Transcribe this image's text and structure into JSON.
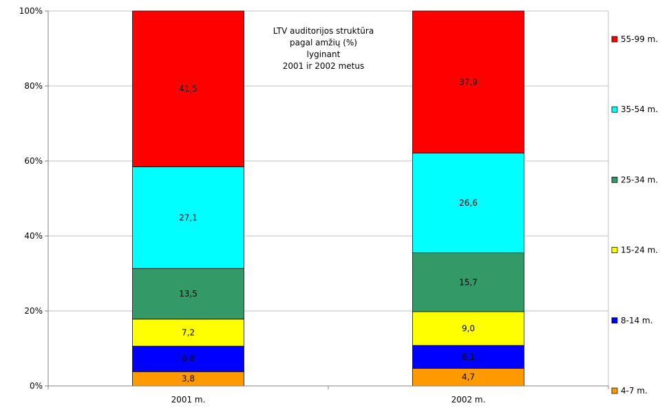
{
  "chart_data": {
    "type": "bar",
    "stacked": true,
    "title_lines": [
      "LTV auditorijos struktūra",
      "pagal amžių (%)",
      "lyginant",
      "2001 ir 2002 metus"
    ],
    "categories": [
      "2001 m.",
      "2002 m."
    ],
    "yticks": [
      "0%",
      "20%",
      "40%",
      "60%",
      "80%",
      "100%"
    ],
    "ylim": [
      0,
      100
    ],
    "grid": true,
    "legend_position": "right",
    "series": [
      {
        "name": "4-7 m.",
        "color": "#ff9900",
        "values": [
          3.8,
          4.7
        ],
        "labels": [
          "3,8",
          "4,7"
        ]
      },
      {
        "name": "8-14 m.",
        "color": "#0000ff",
        "values": [
          6.8,
          6.1
        ],
        "labels": [
          "6,8",
          "6,1"
        ]
      },
      {
        "name": "15-24 m.",
        "color": "#ffff00",
        "values": [
          7.2,
          9.0
        ],
        "labels": [
          "7,2",
          "9,0"
        ]
      },
      {
        "name": "25-34 m.",
        "color": "#339966",
        "values": [
          13.5,
          15.7
        ],
        "labels": [
          "13,5",
          "15,7"
        ]
      },
      {
        "name": "35-54 m.",
        "color": "#00ffff",
        "values": [
          27.1,
          26.6
        ],
        "labels": [
          "27,1",
          "26,6"
        ]
      },
      {
        "name": "55-99 m.",
        "color": "#ff0000",
        "values": [
          41.5,
          37.9
        ],
        "labels": [
          "41,5",
          "37,9"
        ]
      }
    ]
  }
}
